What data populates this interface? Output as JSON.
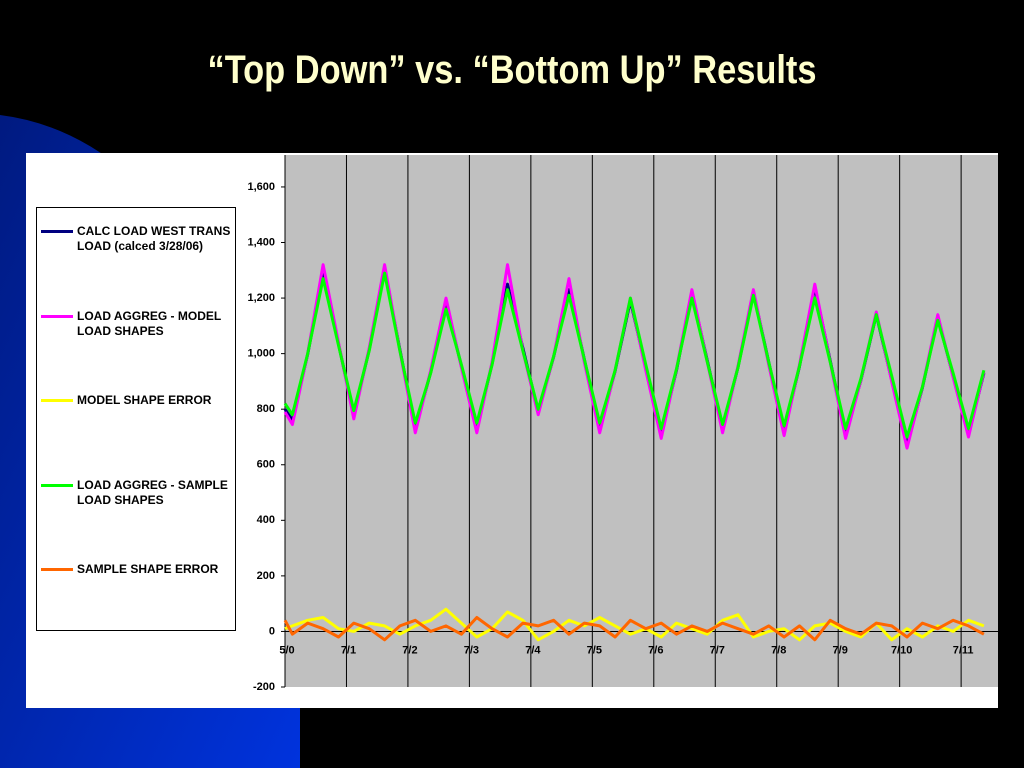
{
  "chart_data": {
    "type": "line",
    "title": "“Top Down” vs. “Bottom Up” Results",
    "x": [
      0,
      0.12,
      0.37,
      0.62,
      0.87,
      1.12,
      1.37,
      1.62,
      1.87,
      2.12,
      2.37,
      2.62,
      2.87,
      3.12,
      3.37,
      3.62,
      3.87,
      4.12,
      4.37,
      4.62,
      4.87,
      5.12,
      5.37,
      5.62,
      5.87,
      6.12,
      6.37,
      6.62,
      6.87,
      7.12,
      7.37,
      7.62,
      7.87,
      8.12,
      8.37,
      8.62,
      8.87,
      9.12,
      9.37,
      9.62,
      9.87,
      10.12,
      10.37,
      10.62,
      10.87,
      11.12,
      11.37
    ],
    "series": [
      {
        "name": "CALC LOAD WEST TRANS LOAD (calced 3/28/06)",
        "color": "#000080",
        "values": [
          800,
          760,
          998,
          1290,
          1035,
          780,
          1014,
          1300,
          1015,
          730,
          933,
          1180,
          955,
          730,
          964,
          1250,
          1020,
          790,
          988,
          1230,
          980,
          730,
          937,
          1190,
          950,
          710,
          940,
          1220,
          975,
          730,
          951,
          1220,
          970,
          720,
          954,
          1240,
          975,
          710,
          904,
          1140,
          905,
          670,
          877,
          1130,
          920,
          710,
          930
        ]
      },
      {
        "name": "LOAD AGGREG - MODEL LOAD SHAPES",
        "color": "#ff00ff",
        "values": [
          790,
          745,
          1000,
          1320,
          1040,
          765,
          1020,
          1320,
          1010,
          715,
          940,
          1200,
          950,
          715,
          970,
          1320,
          1010,
          780,
          990,
          1270,
          970,
          715,
          940,
          1200,
          940,
          695,
          945,
          1230,
          970,
          715,
          955,
          1230,
          960,
          705,
          960,
          1250,
          970,
          695,
          905,
          1150,
          900,
          660,
          880,
          1140,
          915,
          700,
          935
        ]
      },
      {
        "name": "MODEL SHAPE ERROR",
        "color": "#ffff00",
        "values": [
          10,
          20,
          40,
          50,
          10,
          0,
          30,
          20,
          -10,
          20,
          40,
          80,
          30,
          -20,
          10,
          70,
          40,
          -30,
          0,
          40,
          20,
          50,
          20,
          -10,
          10,
          -20,
          30,
          10,
          -10,
          40,
          60,
          -20,
          0,
          10,
          -30,
          20,
          30,
          0,
          -20,
          30,
          -30,
          10,
          -20,
          20,
          0,
          40,
          20
        ]
      },
      {
        "name": "LOAD AGGREG - SAMPLE LOAD SHAPES",
        "color": "#00ff00",
        "values": [
          820,
          780,
          1000,
          1270,
          1030,
          795,
          1010,
          1290,
          1010,
          750,
          930,
          1160,
          960,
          750,
          960,
          1230,
          1010,
          800,
          990,
          1210,
          980,
          750,
          940,
          1200,
          960,
          730,
          945,
          1200,
          970,
          745,
          950,
          1210,
          970,
          740,
          955,
          1200,
          970,
          730,
          910,
          1140,
          920,
          700,
          880,
          1120,
          930,
          730,
          940
        ]
      },
      {
        "name": "SAMPLE SHAPE ERROR",
        "color": "#ff6600",
        "values": [
          40,
          -10,
          30,
          10,
          -20,
          30,
          10,
          -30,
          20,
          40,
          0,
          20,
          -10,
          50,
          10,
          -20,
          30,
          20,
          40,
          -10,
          30,
          20,
          -20,
          40,
          10,
          30,
          -10,
          20,
          0,
          30,
          10,
          -10,
          20,
          -20,
          20,
          -30,
          40,
          10,
          -10,
          30,
          20,
          -20,
          30,
          10,
          40,
          20,
          -10
        ]
      }
    ],
    "xlim": [
      0,
      11.6
    ],
    "xticks": [
      {
        "value": 0,
        "label": "5/0"
      },
      {
        "value": 1,
        "label": "7/1"
      },
      {
        "value": 2,
        "label": "7/2"
      },
      {
        "value": 3,
        "label": "7/3"
      },
      {
        "value": 4,
        "label": "7/4"
      },
      {
        "value": 5,
        "label": "7/5"
      },
      {
        "value": 6,
        "label": "7/6"
      },
      {
        "value": 7,
        "label": "7/7"
      },
      {
        "value": 8,
        "label": "7/8"
      },
      {
        "value": 9,
        "label": "7/9"
      },
      {
        "value": 10,
        "label": "7/10"
      },
      {
        "value": 11,
        "label": "7/11"
      }
    ],
    "ylim": [
      -200,
      1715
    ],
    "yticks": [
      -200,
      0,
      200,
      400,
      600,
      800,
      {
        "value": 1000,
        "label": "1,000"
      },
      {
        "value": 1200,
        "label": "1,200"
      },
      {
        "value": 1400,
        "label": "1,400"
      },
      {
        "value": 1600,
        "label": "1,600"
      }
    ],
    "grid": true
  }
}
